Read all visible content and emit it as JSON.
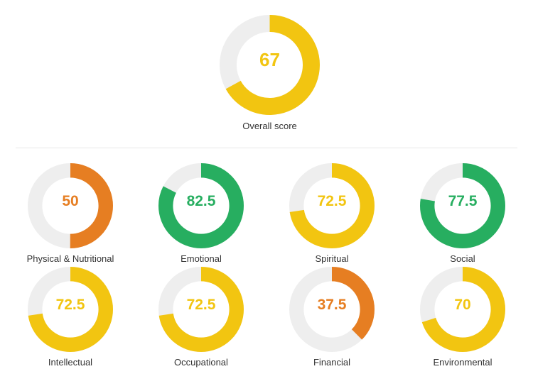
{
  "chart_data": [
    {
      "type": "donut",
      "label": "Overall score",
      "value": 67,
      "display": "67",
      "max": 100,
      "color": "#f2c511"
    },
    {
      "type": "donut",
      "label": "Physical & Nutritional",
      "value": 50,
      "display": "50",
      "max": 100,
      "color": "#e67e22"
    },
    {
      "type": "donut",
      "label": "Emotional",
      "value": 82.5,
      "display": "82.5",
      "max": 100,
      "color": "#27ae60"
    },
    {
      "type": "donut",
      "label": "Spiritual",
      "value": 72.5,
      "display": "72.5",
      "max": 100,
      "color": "#f2c511"
    },
    {
      "type": "donut",
      "label": "Social",
      "value": 77.5,
      "display": "77.5",
      "max": 100,
      "color": "#27ae60"
    },
    {
      "type": "donut",
      "label": "Intellectual",
      "value": 72.5,
      "display": "72.5",
      "max": 100,
      "color": "#f2c511"
    },
    {
      "type": "donut",
      "label": "Occupational",
      "value": 72.5,
      "display": "72.5",
      "max": 100,
      "color": "#f2c511"
    },
    {
      "type": "donut",
      "label": "Financial",
      "value": 37.5,
      "display": "37.5",
      "max": 100,
      "color": "#e67e22"
    },
    {
      "type": "donut",
      "label": "Environmental",
      "value": 70,
      "display": "70",
      "max": 100,
      "color": "#f2c511"
    }
  ],
  "track_color": "#eeeeee"
}
